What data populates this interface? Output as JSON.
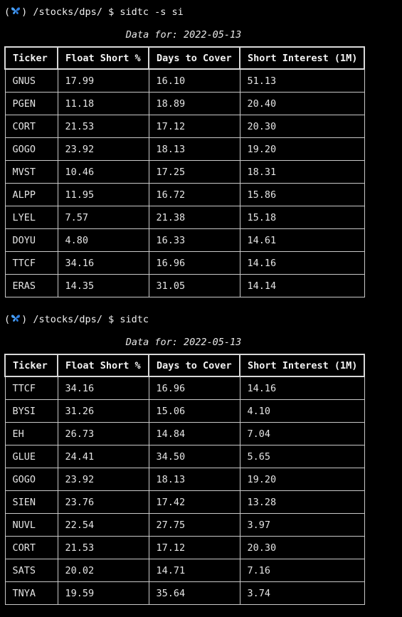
{
  "blocks": [
    {
      "prompt": {
        "open": "(",
        "icon": "butterfly-icon",
        "close": ")",
        "path": " /stocks/dps/ $ ",
        "command": "sidtc -s si"
      },
      "caption": "Data for: 2022-05-13",
      "headers": [
        "Ticker",
        "Float Short %",
        "Days to Cover",
        "Short Interest (1M)"
      ],
      "rows": [
        [
          "GNUS",
          "17.99",
          "16.10",
          "51.13"
        ],
        [
          "PGEN",
          "11.18",
          "18.89",
          "20.40"
        ],
        [
          "CORT",
          "21.53",
          "17.12",
          "20.30"
        ],
        [
          "GOGO",
          "23.92",
          "18.13",
          "19.20"
        ],
        [
          "MVST",
          "10.46",
          "17.25",
          "18.31"
        ],
        [
          "ALPP",
          "11.95",
          "16.72",
          "15.86"
        ],
        [
          "LYEL",
          "7.57",
          "21.38",
          "15.18"
        ],
        [
          "DOYU",
          "4.80",
          "16.33",
          "14.61"
        ],
        [
          "TTCF",
          "34.16",
          "16.96",
          "14.16"
        ],
        [
          "ERAS",
          "14.35",
          "31.05",
          "14.14"
        ]
      ]
    },
    {
      "prompt": {
        "open": "(",
        "icon": "butterfly-icon",
        "close": ")",
        "path": " /stocks/dps/ $ ",
        "command": "sidtc"
      },
      "caption": "Data for: 2022-05-13",
      "headers": [
        "Ticker",
        "Float Short %",
        "Days to Cover",
        "Short Interest (1M)"
      ],
      "rows": [
        [
          "TTCF",
          "34.16",
          "16.96",
          "14.16"
        ],
        [
          "BYSI",
          "31.26",
          "15.06",
          "4.10"
        ],
        [
          "EH",
          "26.73",
          "14.84",
          "7.04"
        ],
        [
          "GLUE",
          "24.41",
          "34.50",
          "5.65"
        ],
        [
          "GOGO",
          "23.92",
          "18.13",
          "19.20"
        ],
        [
          "SIEN",
          "23.76",
          "17.42",
          "13.28"
        ],
        [
          "NUVL",
          "22.54",
          "27.75",
          "3.97"
        ],
        [
          "CORT",
          "21.53",
          "17.12",
          "20.30"
        ],
        [
          "SATS",
          "20.02",
          "14.71",
          "7.16"
        ],
        [
          "TNYA",
          "19.59",
          "35.64",
          "3.74"
        ]
      ]
    }
  ],
  "colors": {
    "background": "#000000",
    "text": "#e8e8e8",
    "border": "#c8c8c8",
    "icon": "#4aa3ff"
  }
}
